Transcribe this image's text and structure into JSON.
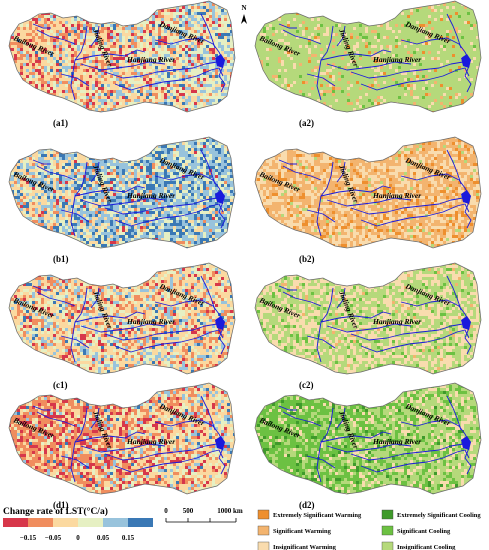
{
  "north_label": "N",
  "panels": [
    {
      "id": "a1",
      "label": "(a1)",
      "scheme": "diverging",
      "mix": [
        0.1,
        0.16,
        0.34,
        0.22,
        0.14,
        0.04
      ],
      "gradient": "east-cool"
    },
    {
      "id": "a2",
      "label": "(a2)",
      "scheme": "significance",
      "mix": [
        0.02,
        0.05,
        0.1,
        0.0,
        0.03,
        0.8
      ],
      "gradient": "none"
    },
    {
      "id": "b1",
      "label": "(b1)",
      "scheme": "diverging",
      "mix": [
        0.02,
        0.05,
        0.18,
        0.22,
        0.33,
        0.2
      ],
      "gradient": "east-cool"
    },
    {
      "id": "b2",
      "label": "(b2)",
      "scheme": "significance",
      "mix": [
        0.12,
        0.48,
        0.36,
        0.0,
        0.0,
        0.04
      ],
      "gradient": "none"
    },
    {
      "id": "c1",
      "label": "(c1)",
      "scheme": "diverging",
      "mix": [
        0.06,
        0.18,
        0.4,
        0.2,
        0.13,
        0.03
      ],
      "gradient": "none"
    },
    {
      "id": "c2",
      "label": "(c2)",
      "scheme": "significance",
      "mix": [
        0.0,
        0.03,
        0.4,
        0.0,
        0.07,
        0.5
      ],
      "gradient": "none"
    },
    {
      "id": "d1",
      "label": "(d1)",
      "scheme": "diverging",
      "mix": [
        0.14,
        0.3,
        0.32,
        0.14,
        0.08,
        0.02
      ],
      "gradient": "west-hot"
    },
    {
      "id": "d2",
      "label": "(d2)",
      "scheme": "significance",
      "mix": [
        0.0,
        0.0,
        0.16,
        0.04,
        0.4,
        0.4
      ],
      "gradient": "west-green"
    }
  ],
  "rivers": {
    "bailong": "Bailong River",
    "jialing": "Jialing River",
    "hanjiang": "Hanjiang River",
    "danjiang": "Danjiang River"
  },
  "colorbar": {
    "title": "Change rate of LST(°C/a)",
    "colors": [
      "#d7374a",
      "#f08d5e",
      "#fbd9a0",
      "#e6f0c3",
      "#98c3dc",
      "#3a78b5"
    ],
    "ticks": [
      "−0.15",
      "−0.05",
      "0",
      "0.05",
      "0.15"
    ]
  },
  "scalebar": {
    "labels": [
      "0",
      "500",
      "1000 km"
    ]
  },
  "significance_legend": {
    "items": [
      {
        "label": "Extremely Significant Warming",
        "color": "#ee8f2e"
      },
      {
        "label": "Significant Warming",
        "color": "#f3b46f"
      },
      {
        "label": "Insignificant Warming",
        "color": "#f9dcae"
      },
      {
        "label": "Extremely Significant Cooling",
        "color": "#3f9a2b"
      },
      {
        "label": "Significant Cooling",
        "color": "#6cc142"
      },
      {
        "label": "Insignificant Cooling",
        "color": "#b5d97b"
      }
    ]
  },
  "palettes": {
    "diverging": [
      "#d7374a",
      "#f08d5e",
      "#fbd9a0",
      "#e6f0c3",
      "#98c3dc",
      "#3a78b5"
    ],
    "significance": [
      "#ee8f2e",
      "#f3b46f",
      "#f9dcae",
      "#3f9a2b",
      "#6cc142",
      "#b5d97b"
    ],
    "river": "#1a1adc"
  }
}
